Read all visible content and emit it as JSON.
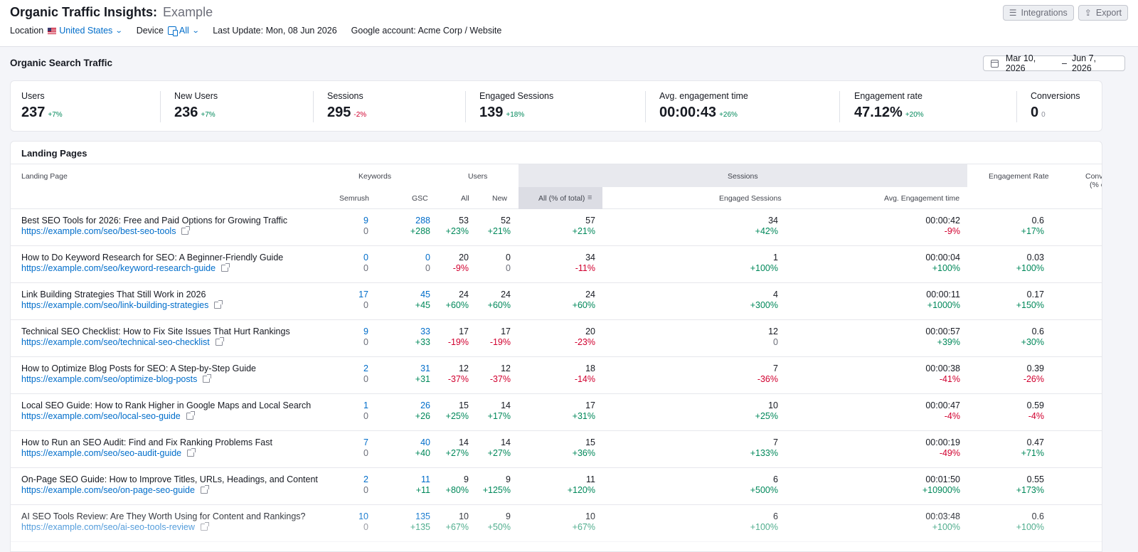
{
  "header": {
    "title": "Organic Traffic Insights:",
    "project": "Example",
    "location_label": "Location",
    "location_value": "United States",
    "device_label": "Device",
    "device_value": "All",
    "last_update": "Last Update: Mon, 08 Jun 2026",
    "google_account": "Google account: Acme Corp / Website",
    "integrations_label": "Integrations",
    "export_label": "Export"
  },
  "section": {
    "title": "Organic Search Traffic",
    "date_from": "Mar 10, 2026",
    "date_sep": "–",
    "date_to": "Jun 7, 2026"
  },
  "metrics": [
    {
      "label": "Users",
      "value": "237",
      "delta": "+7%",
      "trend": "pos"
    },
    {
      "label": "New Users",
      "value": "236",
      "delta": "+7%",
      "trend": "pos"
    },
    {
      "label": "Sessions",
      "value": "295",
      "delta": "-2%",
      "trend": "neg"
    },
    {
      "label": "Engaged Sessions",
      "value": "139",
      "delta": "+18%",
      "trend": "pos"
    },
    {
      "label": "Avg. engagement time",
      "value": "00:00:43",
      "delta": "+26%",
      "trend": "pos"
    },
    {
      "label": "Engagement rate",
      "value": "47.12%",
      "delta": "+20%",
      "trend": "pos"
    },
    {
      "label": "Conversions",
      "value": "0",
      "delta": "0",
      "trend": "neu"
    }
  ],
  "landing": {
    "title": "Landing Pages",
    "headers": {
      "landing_page": "Landing Page",
      "keywords": "Keywords",
      "users": "Users",
      "sessions": "Sessions",
      "engagement_rate": "Engagement Rate",
      "conversions": "Conve",
      "conversions_sub": "(% c",
      "semrush": "Semrush",
      "gsc": "GSC",
      "all": "All",
      "new": "New",
      "all_pct": "All (% of total)",
      "engaged_sessions": "Engaged Sessions",
      "avg_engagement": "Avg. Engagement time"
    },
    "rows": [
      {
        "title": "Best SEO Tools for 2026: Free and Paid Options for Growing Traffic",
        "url": "https://example.com/seo/best-seo-tools",
        "semrush": "9",
        "semrush_d": "0",
        "gsc": "288",
        "gsc_d": "+288",
        "users_all": "53",
        "users_all_d": "+23%",
        "users_new": "52",
        "users_new_d": "+21%",
        "sessions": "57",
        "sessions_d": "+21%",
        "engaged": "34",
        "engaged_d": "+42%",
        "avg_time": "00:00:42",
        "avg_time_d": "-9%",
        "eng_rate": "0.6",
        "eng_rate_d": "+17%"
      },
      {
        "title": "How to Do Keyword Research for SEO: A Beginner-Friendly Guide",
        "url": "https://example.com/seo/keyword-research-guide",
        "semrush": "0",
        "semrush_d": "0",
        "gsc": "0",
        "gsc_d": "0",
        "users_all": "20",
        "users_all_d": "-9%",
        "users_new": "0",
        "users_new_d": "0",
        "sessions": "34",
        "sessions_d": "-11%",
        "engaged": "1",
        "engaged_d": "+100%",
        "avg_time": "00:00:04",
        "avg_time_d": "+100%",
        "eng_rate": "0.03",
        "eng_rate_d": "+100%"
      },
      {
        "title": "Link Building Strategies That Still Work in 2026",
        "url": "https://example.com/seo/link-building-strategies",
        "semrush": "17",
        "semrush_d": "0",
        "gsc": "45",
        "gsc_d": "+45",
        "users_all": "24",
        "users_all_d": "+60%",
        "users_new": "24",
        "users_new_d": "+60%",
        "sessions": "24",
        "sessions_d": "+60%",
        "engaged": "4",
        "engaged_d": "+300%",
        "avg_time": "00:00:11",
        "avg_time_d": "+1000%",
        "eng_rate": "0.17",
        "eng_rate_d": "+150%"
      },
      {
        "title": "Technical SEO Checklist: How to Fix Site Issues That Hurt Rankings",
        "url": "https://example.com/seo/technical-seo-checklist",
        "semrush": "9",
        "semrush_d": "0",
        "gsc": "33",
        "gsc_d": "+33",
        "users_all": "17",
        "users_all_d": "-19%",
        "users_new": "17",
        "users_new_d": "-19%",
        "sessions": "20",
        "sessions_d": "-23%",
        "engaged": "12",
        "engaged_d": "0",
        "avg_time": "00:00:57",
        "avg_time_d": "+39%",
        "eng_rate": "0.6",
        "eng_rate_d": "+30%"
      },
      {
        "title": "How to Optimize Blog Posts for SEO: A Step-by-Step Guide",
        "url": "https://example.com/seo/optimize-blog-posts",
        "semrush": "2",
        "semrush_d": "0",
        "gsc": "31",
        "gsc_d": "+31",
        "users_all": "12",
        "users_all_d": "-37%",
        "users_new": "12",
        "users_new_d": "-37%",
        "sessions": "18",
        "sessions_d": "-14%",
        "engaged": "7",
        "engaged_d": "-36%",
        "avg_time": "00:00:38",
        "avg_time_d": "-41%",
        "eng_rate": "0.39",
        "eng_rate_d": "-26%"
      },
      {
        "title": "Local SEO Guide: How to Rank Higher in Google Maps and Local Search",
        "url": "https://example.com/seo/local-seo-guide",
        "semrush": "1",
        "semrush_d": "0",
        "gsc": "26",
        "gsc_d": "+26",
        "users_all": "15",
        "users_all_d": "+25%",
        "users_new": "14",
        "users_new_d": "+17%",
        "sessions": "17",
        "sessions_d": "+31%",
        "engaged": "10",
        "engaged_d": "+25%",
        "avg_time": "00:00:47",
        "avg_time_d": "-4%",
        "eng_rate": "0.59",
        "eng_rate_d": "-4%"
      },
      {
        "title": "How to Run an SEO Audit: Find and Fix Ranking Problems Fast",
        "url": "https://example.com/seo/seo-audit-guide",
        "semrush": "7",
        "semrush_d": "0",
        "gsc": "40",
        "gsc_d": "+40",
        "users_all": "14",
        "users_all_d": "+27%",
        "users_new": "14",
        "users_new_d": "+27%",
        "sessions": "15",
        "sessions_d": "+36%",
        "engaged": "7",
        "engaged_d": "+133%",
        "avg_time": "00:00:19",
        "avg_time_d": "-49%",
        "eng_rate": "0.47",
        "eng_rate_d": "+71%"
      },
      {
        "title": "On-Page SEO Guide: How to Improve Titles, URLs, Headings, and Content",
        "url": "https://example.com/seo/on-page-seo-guide",
        "semrush": "2",
        "semrush_d": "0",
        "gsc": "11",
        "gsc_d": "+11",
        "users_all": "9",
        "users_all_d": "+80%",
        "users_new": "9",
        "users_new_d": "+125%",
        "sessions": "11",
        "sessions_d": "+120%",
        "engaged": "6",
        "engaged_d": "+500%",
        "avg_time": "00:01:50",
        "avg_time_d": "+10900%",
        "eng_rate": "0.55",
        "eng_rate_d": "+173%"
      },
      {
        "title": "AI SEO Tools Review: Are They Worth Using for Content and Rankings?",
        "url": "https://example.com/seo/ai-seo-tools-review",
        "semrush": "10",
        "semrush_d": "0",
        "gsc": "135",
        "gsc_d": "+135",
        "users_all": "10",
        "users_all_d": "+67%",
        "users_new": "9",
        "users_new_d": "+50%",
        "sessions": "10",
        "sessions_d": "+67%",
        "engaged": "6",
        "engaged_d": "+100%",
        "avg_time": "00:03:48",
        "avg_time_d": "+100%",
        "eng_rate": "0.6",
        "eng_rate_d": "+100%"
      }
    ]
  },
  "colors": {
    "accent": "#006dca",
    "positive": "#00885a",
    "negative": "#d1002f",
    "neutral": "#8b8e99"
  },
  "icons": [
    "us-flag-icon",
    "chevron-down-icon",
    "device-icon",
    "integrations-icon",
    "export-icon",
    "calendar-icon",
    "sort-icon",
    "external-link-icon"
  ]
}
